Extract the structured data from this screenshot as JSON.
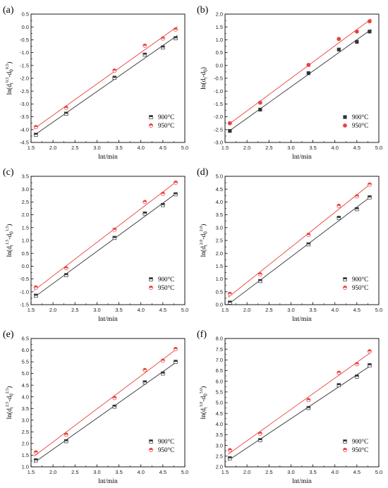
{
  "chart_data": [
    {
      "panel": "(a)",
      "type": "scatter",
      "xlabel": "lnt/min",
      "ylabel": "ln(d_t^{0.5}-d_0^{0.5})",
      "xlim": [
        1.5,
        5.0
      ],
      "ylim": [
        -4.5,
        0.5
      ],
      "xticks": [
        "1.5",
        "2.0",
        "2.5",
        "3.0",
        "3.5",
        "4.0",
        "4.5",
        "5.0"
      ],
      "yticks": [
        "-4.5",
        "-4.0",
        "-3.5",
        "-3.0",
        "-2.5",
        "-2.0",
        "-1.5",
        "-1.0",
        "-0.5",
        "0.0",
        "0.5"
      ],
      "legend_position": "lower-right",
      "marker_style": "half-filled",
      "series": [
        {
          "name": "900°C",
          "marker": "square",
          "color": "#333333",
          "x": [
            1.61,
            2.3,
            3.4,
            4.09,
            4.5,
            4.79
          ],
          "y": [
            -4.2,
            -3.38,
            -1.98,
            -1.08,
            -0.8,
            -0.44
          ]
        },
        {
          "name": "950°C",
          "marker": "circle",
          "color": "#e8413c",
          "x": [
            1.61,
            2.3,
            3.4,
            4.09,
            4.5,
            4.79
          ],
          "y": [
            -3.9,
            -3.15,
            -1.7,
            -0.73,
            -0.45,
            -0.1
          ]
        }
      ]
    },
    {
      "panel": "(b)",
      "type": "scatter",
      "xlabel": "lnt/min",
      "ylabel": "ln(d_t-d_0)",
      "xlim": [
        1.5,
        5.0
      ],
      "ylim": [
        -3.0,
        2.0
      ],
      "xticks": [
        "1.5",
        "2.0",
        "2.5",
        "3.0",
        "3.5",
        "4.0",
        "4.5",
        "5.0"
      ],
      "yticks": [
        "-3.0",
        "-2.5",
        "-2.0",
        "-1.5",
        "-1.0",
        "-0.5",
        "0.0",
        "0.5",
        "1.0",
        "1.5",
        "2.0"
      ],
      "legend_position": "lower-right",
      "marker_style": "filled",
      "series": [
        {
          "name": "900°C",
          "marker": "square",
          "color": "#333333",
          "x": [
            1.61,
            2.3,
            3.4,
            4.09,
            4.5,
            4.79
          ],
          "y": [
            -2.55,
            -1.72,
            -0.3,
            0.62,
            0.92,
            1.32
          ]
        },
        {
          "name": "950°C",
          "marker": "circle",
          "color": "#e8413c",
          "x": [
            1.61,
            2.3,
            3.4,
            4.09,
            4.5,
            4.79
          ],
          "y": [
            -2.25,
            -1.45,
            0.02,
            1.03,
            1.32,
            1.72
          ]
        }
      ]
    },
    {
      "panel": "(c)",
      "type": "scatter",
      "xlabel": "lnt/min",
      "ylabel": "ln(d_t^{1.5}-d_0^{1.5})",
      "xlim": [
        1.5,
        5.0
      ],
      "ylim": [
        -1.5,
        3.5
      ],
      "xticks": [
        "1.5",
        "2.0",
        "2.5",
        "3.0",
        "3.5",
        "4.0",
        "4.5",
        "5.0"
      ],
      "yticks": [
        "-1.5",
        "-1.0",
        "-0.5",
        "0.0",
        "0.5",
        "1.0",
        "1.5",
        "2.0",
        "2.5",
        "3.0",
        "3.5"
      ],
      "legend_position": "lower-right",
      "marker_style": "half-filled",
      "series": [
        {
          "name": "900°C",
          "marker": "square",
          "color": "#333333",
          "x": [
            1.61,
            2.3,
            3.4,
            4.09,
            4.5,
            4.79
          ],
          "y": [
            -1.15,
            -0.35,
            1.1,
            2.05,
            2.38,
            2.8
          ]
        },
        {
          "name": "950°C",
          "marker": "circle",
          "color": "#e8413c",
          "x": [
            1.61,
            2.3,
            3.4,
            4.09,
            4.5,
            4.79
          ],
          "y": [
            -0.83,
            -0.08,
            1.42,
            2.5,
            2.82,
            3.25
          ]
        }
      ]
    },
    {
      "panel": "(d)",
      "type": "scatter",
      "xlabel": "lnt/min",
      "ylabel": "ln(d_t^{2.0}-d_0^{2.0})",
      "xlim": [
        1.5,
        5.0
      ],
      "ylim": [
        0.0,
        5.0
      ],
      "xticks": [
        "1.5",
        "2.0",
        "2.5",
        "3.0",
        "3.5",
        "4.0",
        "4.5",
        "5.0"
      ],
      "yticks": [
        "0.0",
        "0.5",
        "1.0",
        "1.5",
        "2.0",
        "2.5",
        "3.0",
        "3.5",
        "4.0",
        "4.5",
        "5.0"
      ],
      "legend_position": "lower-right",
      "marker_style": "half-filled",
      "series": [
        {
          "name": "900°C",
          "marker": "square",
          "color": "#333333",
          "x": [
            1.61,
            2.3,
            3.4,
            4.09,
            4.5,
            4.79
          ],
          "y": [
            0.08,
            0.92,
            2.35,
            3.38,
            3.72,
            4.18
          ]
        },
        {
          "name": "950°C",
          "marker": "circle",
          "color": "#e8413c",
          "x": [
            1.61,
            2.3,
            3.4,
            4.09,
            4.5,
            4.79
          ],
          "y": [
            0.42,
            1.18,
            2.72,
            3.85,
            4.22,
            4.68
          ]
        }
      ]
    },
    {
      "panel": "(e)",
      "type": "scatter",
      "xlabel": "lnt/min",
      "ylabel": "ln(d_t^{2.5}-d_0^{2.5})",
      "xlim": [
        1.5,
        5.0
      ],
      "ylim": [
        1.0,
        6.5
      ],
      "xticks": [
        "1.5",
        "2.0",
        "2.5",
        "3.0",
        "3.5",
        "4.0",
        "4.5",
        "5.0"
      ],
      "yticks": [
        "1.0",
        "1.5",
        "2.0",
        "2.5",
        "3.0",
        "3.5",
        "4.0",
        "4.5",
        "5.0",
        "5.5",
        "6.0",
        "6.5"
      ],
      "legend_position": "lower-right",
      "marker_style": "half-filled",
      "series": [
        {
          "name": "900°C",
          "marker": "square",
          "color": "#333333",
          "x": [
            1.61,
            2.3,
            3.4,
            4.09,
            4.5,
            4.79
          ],
          "y": [
            1.28,
            2.1,
            3.58,
            4.62,
            5.0,
            5.5
          ]
        },
        {
          "name": "950°C",
          "marker": "circle",
          "color": "#e8413c",
          "x": [
            1.61,
            2.3,
            3.4,
            4.09,
            4.5,
            4.79
          ],
          "y": [
            1.62,
            2.38,
            3.95,
            5.15,
            5.55,
            6.05
          ]
        }
      ]
    },
    {
      "panel": "(f)",
      "type": "scatter",
      "xlabel": "lnt/min",
      "ylabel": "ln(d_t^{3.0}-d_0^{3.0})",
      "xlim": [
        1.5,
        5.0
      ],
      "ylim": [
        2.0,
        8.0
      ],
      "xticks": [
        "1.5",
        "2.0",
        "2.5",
        "3.0",
        "3.5",
        "4.0",
        "4.5",
        "5.0"
      ],
      "yticks": [
        "2.0",
        "2.5",
        "3.0",
        "3.5",
        "4.0",
        "4.5",
        "5.0",
        "5.5",
        "6.0",
        "6.5",
        "7.0",
        "7.5",
        "8.0"
      ],
      "legend_position": "lower-right",
      "marker_style": "half-filled",
      "series": [
        {
          "name": "900°C",
          "marker": "square",
          "color": "#333333",
          "x": [
            1.61,
            2.3,
            3.4,
            4.09,
            4.5,
            4.79
          ],
          "y": [
            2.4,
            3.25,
            4.75,
            5.82,
            6.22,
            6.75
          ]
        },
        {
          "name": "950°C",
          "marker": "circle",
          "color": "#e8413c",
          "x": [
            1.61,
            2.3,
            3.4,
            4.09,
            4.5,
            4.79
          ],
          "y": [
            2.78,
            3.55,
            5.12,
            6.4,
            6.8,
            7.4
          ]
        }
      ]
    }
  ]
}
